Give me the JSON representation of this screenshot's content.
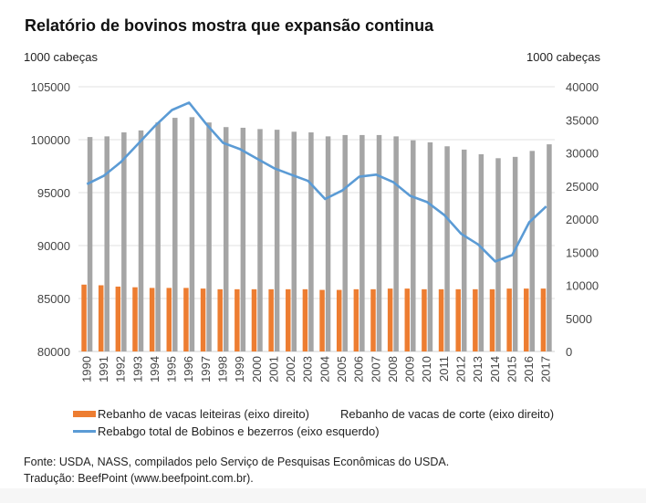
{
  "chart_data": {
    "type": "bar",
    "title": "Relatório de bovinos mostra que expansão continua",
    "ylabel_left": "1000 cabeças",
    "ylabel_right": "1000 cabeças",
    "categories": [
      "1990",
      "1991",
      "1992",
      "1993",
      "1994",
      "1995",
      "1996",
      "1997",
      "1998",
      "1999",
      "2000",
      "2001",
      "2002",
      "2003",
      "2004",
      "2005",
      "2006",
      "2007",
      "2008",
      "2009",
      "2010",
      "2011",
      "2012",
      "2013",
      "2014",
      "2015",
      "2016",
      "2017"
    ],
    "y_left": {
      "range": [
        80000,
        105000
      ],
      "ticks": [
        "80000",
        "85000",
        "90000",
        "95000",
        "100000",
        "105000"
      ]
    },
    "y_right": {
      "range": [
        0,
        40000
      ],
      "ticks": [
        "0",
        "5000",
        "10000",
        "15000",
        "20000",
        "25000",
        "30000",
        "35000",
        "40000"
      ]
    },
    "grid": true,
    "legend_position": "bottom",
    "series": [
      {
        "name": "Rebanho de vacas leiteiras (eixo direito)",
        "type": "bar",
        "axis": "right",
        "color": "#ed7d31",
        "values": [
          10100,
          10000,
          9800,
          9700,
          9600,
          9600,
          9600,
          9500,
          9400,
          9400,
          9400,
          9400,
          9400,
          9400,
          9300,
          9300,
          9400,
          9400,
          9500,
          9500,
          9400,
          9400,
          9400,
          9400,
          9400,
          9500,
          9500,
          9500
        ]
      },
      {
        "name": "Rebanho de vacas de corte (eixo direito)",
        "type": "bar",
        "axis": "right",
        "color": "#a5a5a5",
        "values": [
          32400,
          32500,
          33100,
          33400,
          34600,
          35300,
          35400,
          34600,
          33900,
          33800,
          33600,
          33500,
          33200,
          33100,
          32500,
          32700,
          32700,
          32700,
          32500,
          31900,
          31600,
          31000,
          30500,
          29800,
          29200,
          29400,
          30300,
          31300
        ]
      },
      {
        "name": "Rebabgo total de Bobinos e bezerros (eixo esquerdo)",
        "type": "line",
        "axis": "left",
        "color": "#5b9bd5",
        "values": [
          95800,
          96600,
          97900,
          99600,
          101300,
          102800,
          103500,
          101500,
          99700,
          99100,
          98200,
          97300,
          96700,
          96100,
          94400,
          95200,
          96500,
          96700,
          96000,
          94700,
          94100,
          92900,
          91100,
          90100,
          88500,
          89100,
          92200,
          93700
        ]
      }
    ]
  },
  "legend": {
    "items": [
      "Rebanho de vacas leiteiras (eixo direito)",
      "Rebanho de vacas de corte (eixo direito)",
      "Rebabgo total de Bobinos e bezerros (eixo esquerdo)"
    ]
  },
  "source": {
    "line1": "Fonte: USDA, NASS, compilados pelo Serviço de Pesquisas Econômicas do USDA.",
    "line2": "Tradução: BeefPoint (www.beefpoint.com.br)."
  }
}
